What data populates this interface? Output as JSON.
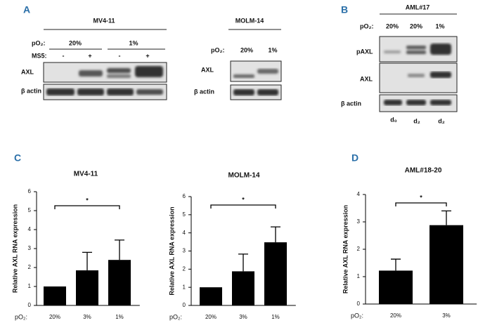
{
  "panels": {
    "A": {
      "letter": "A",
      "mv411": {
        "title": "MV4-11",
        "po2": "pO₂:",
        "conditions": [
          "20%",
          "1%"
        ],
        "ms5": "MS5:",
        "ms5_states": [
          "-",
          "+",
          "-",
          "+"
        ],
        "rows": [
          "AXL",
          "β actin"
        ]
      },
      "molm14": {
        "title": "MOLM-14",
        "po2": "pO₂:",
        "conditions": [
          "20%",
          "1%"
        ],
        "rows": [
          "AXL",
          "β actin"
        ]
      }
    },
    "B": {
      "letter": "B",
      "title": "AML#17",
      "po2": "pO₂:",
      "conditions": [
        "20%",
        "20%",
        "1%"
      ],
      "rows": [
        "pAXL",
        "AXL",
        "β actin"
      ],
      "days": [
        "d₀",
        "d₂",
        "d₂"
      ]
    },
    "C": {
      "letter": "C"
    },
    "D": {
      "letter": "D"
    }
  },
  "chart_data": [
    {
      "type": "bar",
      "title": "MV4-11",
      "ylabel": "Relative AXL RNA expression",
      "xlabel": "pO₂:",
      "categories": [
        "20%",
        "3%",
        "1%"
      ],
      "values": [
        1,
        1.85,
        2.4
      ],
      "errors": [
        0,
        0.95,
        1.05
      ],
      "color": "#000000",
      "ylim": [
        0,
        6
      ],
      "yticks": [
        0,
        1,
        2,
        3,
        4,
        5,
        6
      ],
      "annotations": [
        "*"
      ]
    },
    {
      "type": "bar",
      "title": "MOLM-14",
      "ylabel": "Relative AXL RNA expression",
      "xlabel": "pO₂:",
      "categories": [
        "20%",
        "3%",
        "1%"
      ],
      "values": [
        1,
        1.88,
        3.48
      ],
      "errors": [
        0,
        0.95,
        0.85
      ],
      "color": "#000000",
      "ylim": [
        0,
        6
      ],
      "yticks": [
        0,
        1,
        2,
        3,
        4,
        5,
        6
      ],
      "annotations": [
        "*"
      ]
    },
    {
      "type": "bar",
      "title": "AML#18-20",
      "ylabel": "Relative AXL RNA expression",
      "xlabel": "pO₂:",
      "categories": [
        "20%",
        "3%"
      ],
      "values": [
        1.22,
        2.88
      ],
      "errors": [
        0.42,
        0.52
      ],
      "color": "#000000",
      "ylim": [
        0,
        4
      ],
      "yticks": [
        0,
        1,
        2,
        3,
        4
      ],
      "annotations": [
        "*"
      ]
    }
  ]
}
